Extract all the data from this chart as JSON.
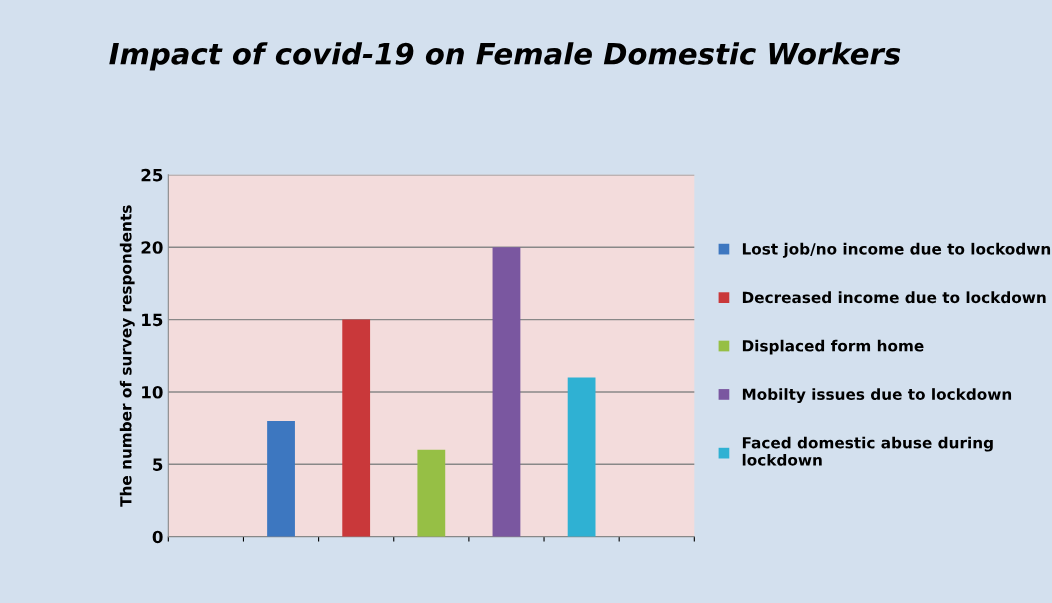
{
  "chart_data": {
    "type": "bar",
    "title": "Impact of covid-19 on Female Domestic Workers",
    "ylabel": "The number of survey respondents",
    "categories": [
      null,
      null,
      null,
      null,
      null,
      null,
      null
    ],
    "series": [
      {
        "name": "Lost job/no income due to lockodwn",
        "color": "#3d77c0",
        "values": [
          null,
          8,
          null,
          null,
          null,
          null,
          null
        ]
      },
      {
        "name": "Decreased income due to lockdown",
        "color": "#c9383a",
        "values": [
          null,
          null,
          15,
          null,
          null,
          null,
          null
        ]
      },
      {
        "name": "Displaced form home",
        "color": "#96bf45",
        "values": [
          null,
          null,
          null,
          6,
          null,
          null,
          null
        ]
      },
      {
        "name": "Mobilty issues due to lockdown",
        "color": "#7a57a0",
        "values": [
          null,
          null,
          null,
          null,
          20,
          null,
          null
        ]
      },
      {
        "name": "Faced domestic abuse during\nlockdown",
        "color": "#2fb1d3",
        "values": [
          null,
          null,
          null,
          null,
          null,
          11,
          null
        ]
      }
    ],
    "ylim": [
      0,
      25
    ],
    "yticks": [
      0,
      5,
      10,
      15,
      20,
      25
    ],
    "grid": "y",
    "legend": "right"
  }
}
